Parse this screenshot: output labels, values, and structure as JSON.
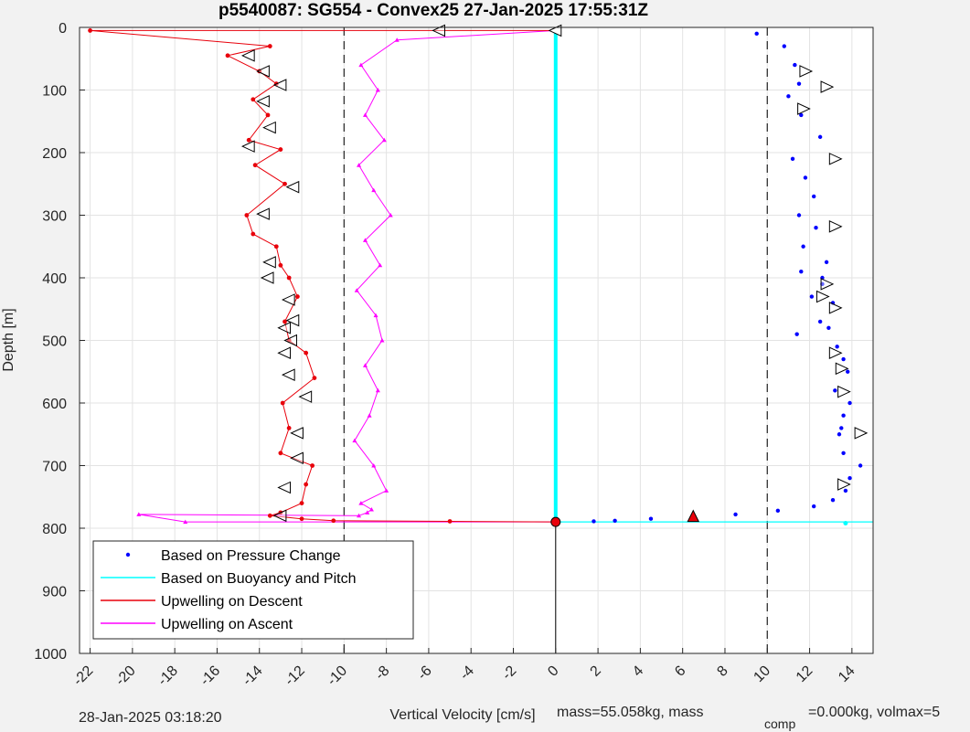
{
  "title": "p5540087: SG554 - Convex25 27-Jan-2025 17:55:31Z",
  "footer": {
    "timestamp": "28-Jan-2025 03:18:20",
    "mass_label": "mass=55.058kg, mass",
    "comp_subscript": "comp",
    "comp_rest": "=0.000kg, volmax=5"
  },
  "chart_data": {
    "type": "line",
    "title": "p5540087: SG554 - Convex25 27-Jan-2025 17:55:31Z",
    "xlabel": "Vertical Velocity [cm/s]",
    "ylabel": "Depth [m]",
    "xlim": [
      -22.5,
      15
    ],
    "ylim": [
      0,
      1000
    ],
    "y_reversed": true,
    "xticks": [
      -22,
      -20,
      -18,
      -16,
      -14,
      -12,
      -10,
      -8,
      -6,
      -4,
      -2,
      0,
      2,
      4,
      6,
      8,
      10,
      12,
      14
    ],
    "yticks": [
      0,
      100,
      200,
      300,
      400,
      500,
      600,
      700,
      800,
      900,
      1000
    ],
    "grid": true,
    "legend_position": "bottom-left",
    "reference_lines": [
      -10,
      10
    ],
    "series": [
      {
        "name": "Based on Pressure Change",
        "style": "dots",
        "color": "#0000ff",
        "x": [
          9.5,
          10.8,
          11.3,
          11.5,
          11.0,
          11.6,
          12.5,
          11.2,
          11.8,
          12.2,
          11.5,
          12.3,
          11.7,
          12.8,
          11.6,
          12.6,
          13.1,
          12.5,
          11.4,
          12.1,
          12.6,
          12.9,
          13.3,
          13.6,
          13.8,
          13.2,
          13.9,
          13.6,
          13.5,
          13.4,
          13.6,
          14.4,
          13.9,
          13.7,
          13.1,
          12.2,
          10.5,
          8.5,
          6.5,
          4.5,
          2.8,
          1.8,
          0.0
        ],
        "y": [
          10,
          30,
          60,
          90,
          110,
          140,
          175,
          210,
          240,
          270,
          300,
          320,
          350,
          375,
          390,
          410,
          440,
          470,
          490,
          430,
          400,
          480,
          510,
          530,
          550,
          580,
          600,
          620,
          640,
          650,
          680,
          700,
          720,
          740,
          755,
          765,
          772,
          778,
          782,
          785,
          788,
          789,
          790
        ]
      },
      {
        "name": "Based on Buoyancy and Pitch",
        "style": "line",
        "color": "#00ffff",
        "x": [
          0,
          0,
          0,
          15
        ],
        "y": [
          0,
          790,
          790,
          790
        ]
      },
      {
        "name": "Upwelling on Descent",
        "style": "line-dots",
        "color": "#e8000b",
        "x": [
          0,
          -22,
          -13.5,
          -15.5,
          -14.0,
          -13.2,
          -14.3,
          -13.6,
          -14.5,
          -13.0,
          -14.2,
          -12.8,
          -14.6,
          -14.3,
          -13.2,
          -13.0,
          -12.6,
          -12.2,
          -12.8,
          -12.6,
          -11.8,
          -11.4,
          -12.9,
          -12.6,
          -13.0,
          -11.5,
          -11.8,
          -12.0,
          -13.0,
          -13.5,
          -12.0,
          -10.5,
          -5.0,
          0
        ],
        "y": [
          5,
          5,
          30,
          45,
          70,
          90,
          115,
          140,
          180,
          195,
          220,
          250,
          300,
          330,
          350,
          380,
          400,
          430,
          470,
          500,
          520,
          560,
          600,
          640,
          680,
          700,
          730,
          760,
          775,
          780,
          785,
          788,
          789,
          790
        ]
      },
      {
        "name": "Upwelling on Ascent",
        "style": "line-triangles",
        "color": "#ff00ff",
        "x": [
          0,
          -7.5,
          -9.2,
          -8.4,
          -9.0,
          -8.1,
          -9.3,
          -8.6,
          -7.8,
          -9.0,
          -8.3,
          -9.4,
          -8.5,
          -8.2,
          -9.0,
          -8.4,
          -8.8,
          -9.5,
          -8.6,
          -8.0,
          -9.2,
          -8.7,
          -8.9,
          -9.3,
          -19.7,
          -17.5,
          0
        ],
        "y": [
          5,
          20,
          60,
          100,
          140,
          180,
          220,
          260,
          300,
          340,
          380,
          420,
          460,
          500,
          540,
          580,
          620,
          660,
          700,
          740,
          760,
          770,
          775,
          780,
          778,
          790,
          790
        ]
      }
    ],
    "annotations": {
      "ascent_markers_right": [
        [
          11.8,
          70
        ],
        [
          12.8,
          95
        ],
        [
          11.7,
          130
        ],
        [
          13.2,
          210
        ],
        [
          13.2,
          318
        ],
        [
          12.8,
          410
        ],
        [
          12.6,
          430
        ],
        [
          13.2,
          448
        ],
        [
          13.2,
          520
        ],
        [
          13.5,
          545
        ],
        [
          13.6,
          582
        ],
        [
          14.4,
          648
        ],
        [
          13.6,
          730
        ]
      ],
      "descent_markers_left": [
        [
          -5.5,
          5
        ],
        [
          -14.5,
          45
        ],
        [
          -13.8,
          70
        ],
        [
          -13.0,
          92
        ],
        [
          -13.8,
          118
        ],
        [
          -13.5,
          160
        ],
        [
          -14.5,
          190
        ],
        [
          -12.4,
          255
        ],
        [
          -13.8,
          298
        ],
        [
          -13.5,
          375
        ],
        [
          -13.6,
          400
        ],
        [
          -12.6,
          435
        ],
        [
          -12.4,
          468
        ],
        [
          -12.8,
          480
        ],
        [
          -12.5,
          500
        ],
        [
          -12.8,
          520
        ],
        [
          -12.6,
          555
        ],
        [
          -11.8,
          590
        ],
        [
          -12.2,
          648
        ],
        [
          -12.2,
          688
        ],
        [
          -12.8,
          735
        ],
        [
          -13.0,
          780
        ]
      ],
      "surface_marker": [
        0,
        5
      ],
      "end_marker": [
        0,
        790
      ],
      "red_triangle": [
        6.5,
        782
      ]
    }
  }
}
